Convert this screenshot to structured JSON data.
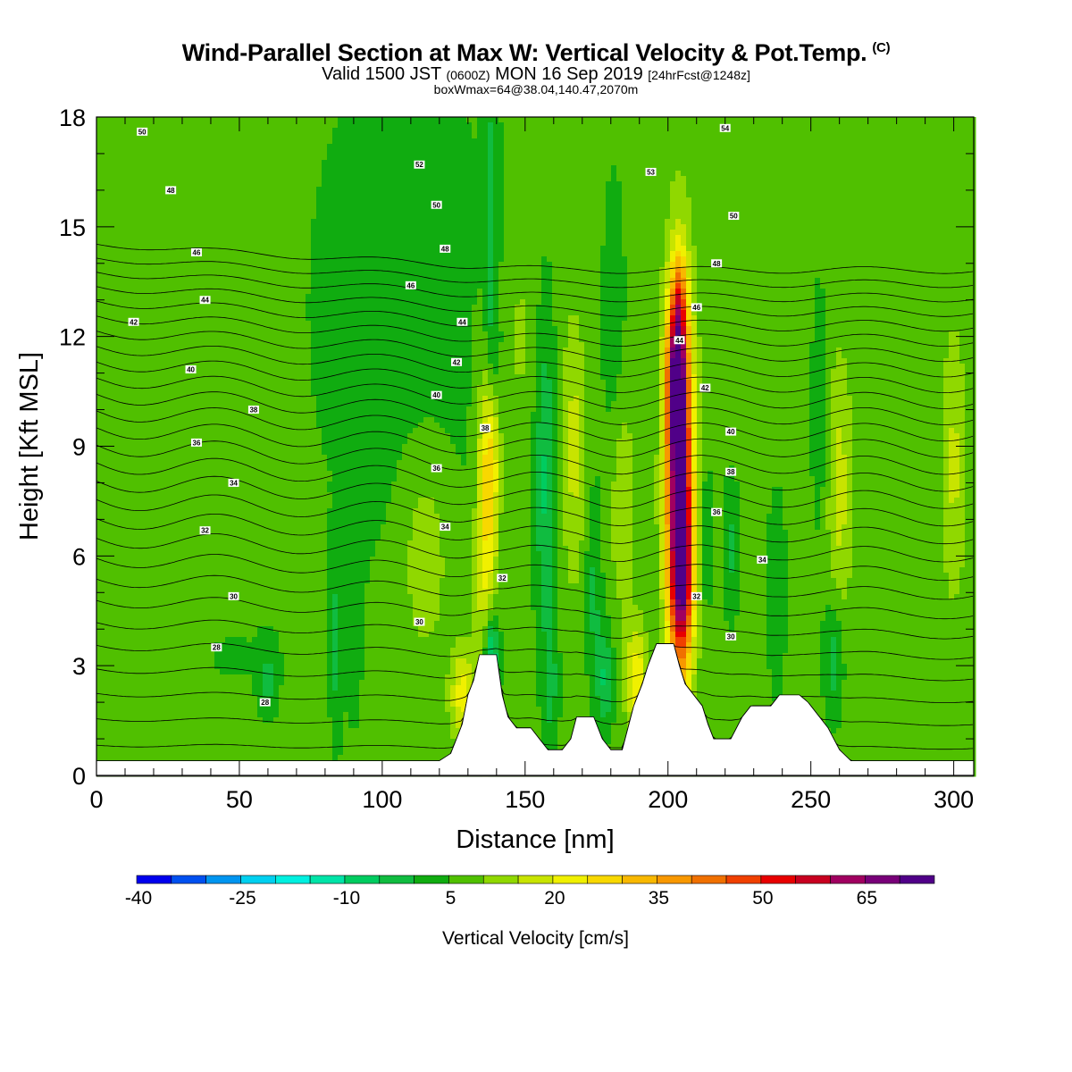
{
  "header": {
    "title_main": "Wind-Parallel Section at Max W: Vertical Velocity & Pot.Temp.",
    "title_mark": "(C)",
    "valid_prefix": "Valid 1500 JST",
    "valid_utc": "(0600Z)",
    "valid_date": "MON 16 Sep 2019",
    "forecast": "[24hrFcst@1248z]",
    "box_info": "boxWmax=64@38.04,140.47,2070m"
  },
  "chart_data": {
    "type": "heatmap",
    "xlabel": "Distance [nm]",
    "ylabel": "Height [Kft MSL]",
    "xlim": [
      0,
      307
    ],
    "ylim": [
      0,
      18
    ],
    "x_ticks": [
      0,
      50,
      100,
      150,
      200,
      250,
      300
    ],
    "y_ticks": [
      0,
      3,
      6,
      9,
      12,
      15,
      18
    ],
    "background_w": 2,
    "colorbar": {
      "title": "Vertical Velocity [cm/s]",
      "levels_start": -40,
      "levels_step": 5,
      "tick_labels": [
        "-40",
        "-25",
        "-10",
        "5",
        "20",
        "35",
        "50",
        "65"
      ],
      "colors": [
        "#0000ee",
        "#0050f0",
        "#0095f0",
        "#00d0f0",
        "#00f0e0",
        "#00e4a8",
        "#00cc60",
        "#10bc40",
        "#10ac10",
        "#50c000",
        "#90d800",
        "#c8e400",
        "#f0f000",
        "#f8d800",
        "#f8b800",
        "#f89800",
        "#f07000",
        "#f04000",
        "#e80000",
        "#c80020",
        "#a00060",
        "#780078",
        "#500088"
      ]
    },
    "terrain": [
      [
        0,
        0.4
      ],
      [
        112,
        0.4
      ],
      [
        120,
        0.4
      ],
      [
        124,
        0.6
      ],
      [
        126,
        1.0
      ],
      [
        128,
        1.4
      ],
      [
        130,
        2.2
      ],
      [
        132,
        2.6
      ],
      [
        134,
        3.3
      ],
      [
        140,
        3.3
      ],
      [
        142,
        2.2
      ],
      [
        144,
        1.6
      ],
      [
        147,
        1.3
      ],
      [
        152,
        1.3
      ],
      [
        155,
        1.0
      ],
      [
        158,
        0.7
      ],
      [
        163,
        0.7
      ],
      [
        166,
        1.0
      ],
      [
        168,
        1.6
      ],
      [
        174,
        1.6
      ],
      [
        177,
        1.0
      ],
      [
        180,
        0.7
      ],
      [
        184,
        0.7
      ],
      [
        186,
        1.3
      ],
      [
        188,
        1.9
      ],
      [
        191,
        2.5
      ],
      [
        193,
        3.0
      ],
      [
        196,
        3.6
      ],
      [
        202,
        3.6
      ],
      [
        204,
        3.0
      ],
      [
        206,
        2.5
      ],
      [
        209,
        2.2
      ],
      [
        212,
        1.9
      ],
      [
        214,
        1.4
      ],
      [
        216,
        1.0
      ],
      [
        222,
        1.0
      ],
      [
        224,
        1.3
      ],
      [
        226,
        1.6
      ],
      [
        229,
        1.9
      ],
      [
        236,
        1.9
      ],
      [
        239,
        2.2
      ],
      [
        246,
        2.2
      ],
      [
        249,
        2.0
      ],
      [
        253,
        1.6
      ],
      [
        256,
        1.3
      ],
      [
        258,
        1.0
      ],
      [
        260,
        0.7
      ],
      [
        264,
        0.4
      ],
      [
        307,
        0.4
      ]
    ],
    "cells": [
      {
        "x": 107,
        "y": 12.8,
        "sx": 28,
        "sy": 6,
        "w": -4
      },
      {
        "x": 46,
        "y": 3.2,
        "sx": 22,
        "sy": 1.6,
        "w": -2
      },
      {
        "x": 136,
        "y": 6,
        "sx": 2.5,
        "sy": 3.5,
        "w": 14
      },
      {
        "x": 138,
        "y": 8.5,
        "sx": 2.2,
        "sy": 1.8,
        "w": 16
      },
      {
        "x": 138,
        "y": 3.2,
        "sx": 1.8,
        "sy": 0.9,
        "w": -24
      },
      {
        "x": 138,
        "y": 15,
        "sx": 1.8,
        "sy": 3.2,
        "w": -8
      },
      {
        "x": 139,
        "y": 11.5,
        "sx": 1.8,
        "sy": 0.9,
        "w": -6
      },
      {
        "x": 128,
        "y": 2.2,
        "sx": 3,
        "sy": 0.9,
        "w": 16
      },
      {
        "x": 157,
        "y": 8,
        "sx": 2.5,
        "sy": 3,
        "w": -12
      },
      {
        "x": 159,
        "y": 2.4,
        "sx": 2,
        "sy": 1.3,
        "w": -8
      },
      {
        "x": 167,
        "y": 9,
        "sx": 3,
        "sy": 2.5,
        "w": 10
      },
      {
        "x": 174,
        "y": 5,
        "sx": 2,
        "sy": 2,
        "w": -8
      },
      {
        "x": 178,
        "y": 2.6,
        "sx": 2,
        "sy": 1,
        "w": -12
      },
      {
        "x": 189,
        "y": 2.6,
        "sx": 2.5,
        "sy": 1,
        "w": 18
      },
      {
        "x": 184,
        "y": 7.5,
        "sx": 3,
        "sy": 2,
        "w": 8
      },
      {
        "x": 204,
        "y": 7.8,
        "sx": 3.3,
        "sy": 3.6,
        "w": 58
      },
      {
        "x": 203,
        "y": 10.8,
        "sx": 2.3,
        "sy": 1.6,
        "w": 44
      },
      {
        "x": 205,
        "y": 5.5,
        "sx": 2.6,
        "sy": 1.5,
        "w": 30
      },
      {
        "x": 204,
        "y": 13,
        "sx": 1.6,
        "sy": 0.9,
        "w": 14
      },
      {
        "x": 213,
        "y": 6.5,
        "sx": 2,
        "sy": 1.5,
        "w": -6
      },
      {
        "x": 222,
        "y": 6.2,
        "sx": 2,
        "sy": 1.4,
        "w": -8
      },
      {
        "x": 238,
        "y": 5,
        "sx": 2.5,
        "sy": 2,
        "w": -6
      },
      {
        "x": 260,
        "y": 7.8,
        "sx": 3,
        "sy": 2.5,
        "w": 10
      },
      {
        "x": 258,
        "y": 3.2,
        "sx": 2.5,
        "sy": 1.2,
        "w": -10
      },
      {
        "x": 253,
        "y": 10,
        "sx": 2,
        "sy": 2.5,
        "w": -6
      },
      {
        "x": 300,
        "y": 8.5,
        "sx": 3,
        "sy": 2.5,
        "w": 9
      },
      {
        "x": 84,
        "y": 3.5,
        "sx": 1.5,
        "sy": 1.8,
        "w": -8
      },
      {
        "x": 90,
        "y": 6,
        "sx": 2,
        "sy": 3,
        "w": -5
      },
      {
        "x": 60,
        "y": 2.6,
        "sx": 2,
        "sy": 0.6,
        "w": -8
      },
      {
        "x": 115,
        "y": 6,
        "sx": 6,
        "sy": 2,
        "w": 8
      },
      {
        "x": 181,
        "y": 12.5,
        "sx": 3,
        "sy": 3,
        "w": -5
      },
      {
        "x": 148,
        "y": 12,
        "sx": 4,
        "sy": 2,
        "w": 5
      }
    ],
    "isotherms": [
      26,
      27,
      28,
      29,
      30,
      31,
      32,
      33,
      34,
      35,
      36,
      37,
      38,
      39,
      40,
      41,
      42,
      43,
      44,
      45,
      46,
      47,
      48,
      49,
      50,
      51,
      52,
      53,
      54
    ],
    "isotherm_labels": [
      {
        "x": 16,
        "y": 17.6,
        "text": "50"
      },
      {
        "x": 113,
        "y": 16.7,
        "text": "52"
      },
      {
        "x": 194,
        "y": 16.5,
        "text": "53"
      },
      {
        "x": 220,
        "y": 17.7,
        "text": "54"
      },
      {
        "x": 26,
        "y": 16.0,
        "text": "48"
      },
      {
        "x": 119,
        "y": 15.6,
        "text": "50"
      },
      {
        "x": 223,
        "y": 15.3,
        "text": "50"
      },
      {
        "x": 35,
        "y": 14.3,
        "text": "46"
      },
      {
        "x": 122,
        "y": 14.4,
        "text": "48"
      },
      {
        "x": 217,
        "y": 14.0,
        "text": "48"
      },
      {
        "x": 110,
        "y": 13.4,
        "text": "46"
      },
      {
        "x": 38,
        "y": 13.0,
        "text": "44"
      },
      {
        "x": 210,
        "y": 12.8,
        "text": "46"
      },
      {
        "x": 13,
        "y": 12.4,
        "text": "42"
      },
      {
        "x": 128,
        "y": 12.4,
        "text": "44"
      },
      {
        "x": 204,
        "y": 11.9,
        "text": "44"
      },
      {
        "x": 33,
        "y": 11.1,
        "text": "40"
      },
      {
        "x": 126,
        "y": 11.3,
        "text": "42"
      },
      {
        "x": 213,
        "y": 10.6,
        "text": "42"
      },
      {
        "x": 119,
        "y": 10.4,
        "text": "40"
      },
      {
        "x": 55,
        "y": 10.0,
        "text": "38"
      },
      {
        "x": 136,
        "y": 9.5,
        "text": "38"
      },
      {
        "x": 222,
        "y": 9.4,
        "text": "40"
      },
      {
        "x": 35,
        "y": 9.1,
        "text": "36"
      },
      {
        "x": 119,
        "y": 8.4,
        "text": "36"
      },
      {
        "x": 222,
        "y": 8.3,
        "text": "38"
      },
      {
        "x": 48,
        "y": 8.0,
        "text": "34"
      },
      {
        "x": 217,
        "y": 7.2,
        "text": "36"
      },
      {
        "x": 122,
        "y": 6.8,
        "text": "34"
      },
      {
        "x": 38,
        "y": 6.7,
        "text": "32"
      },
      {
        "x": 233,
        "y": 5.9,
        "text": "34"
      },
      {
        "x": 142,
        "y": 5.4,
        "text": "32"
      },
      {
        "x": 48,
        "y": 4.9,
        "text": "30"
      },
      {
        "x": 210,
        "y": 4.9,
        "text": "32"
      },
      {
        "x": 113,
        "y": 4.2,
        "text": "30"
      },
      {
        "x": 222,
        "y": 3.8,
        "text": "30"
      },
      {
        "x": 42,
        "y": 3.5,
        "text": "28"
      },
      {
        "x": 59,
        "y": 2.0,
        "text": "28"
      }
    ]
  }
}
